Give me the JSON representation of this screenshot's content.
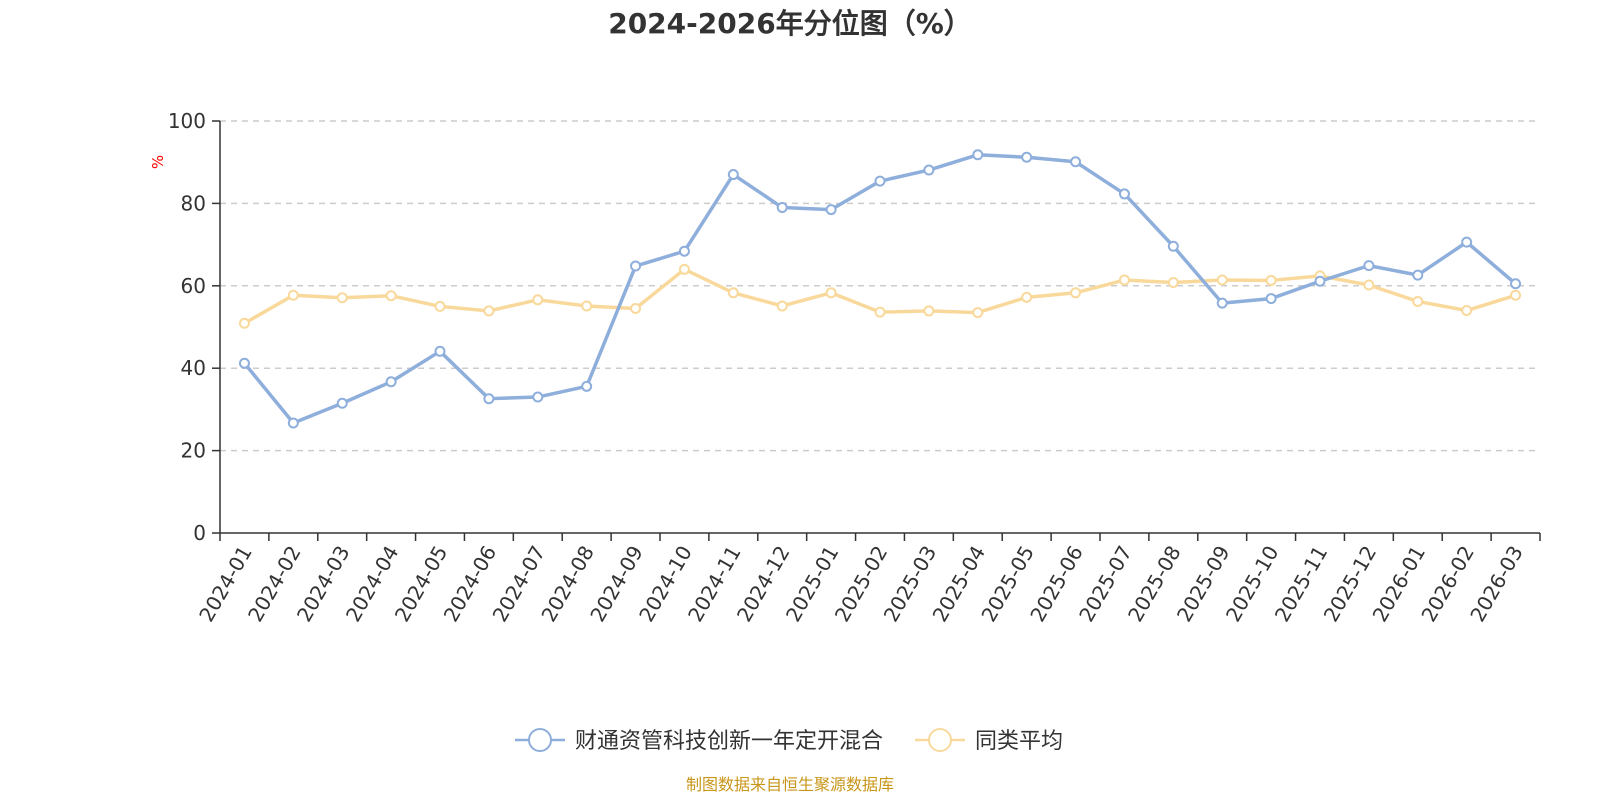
{
  "chart_data": {
    "type": "line",
    "title": "2024-2026年分位图（%）",
    "xlabel": "",
    "ylabel": "%",
    "ylim": [
      0,
      100
    ],
    "yticks": [
      0,
      20,
      40,
      60,
      80,
      100
    ],
    "grid": true,
    "legend_position": "bottom-center",
    "categories": [
      "2024-01",
      "2024-02",
      "2024-03",
      "2024-04",
      "2024-05",
      "2024-06",
      "2024-07",
      "2024-08",
      "2024-09",
      "2024-10",
      "2024-11",
      "2024-12",
      "2025-01",
      "2025-02",
      "2025-03",
      "2025-04",
      "2025-05",
      "2025-06",
      "2025-07",
      "2025-08",
      "2025-09",
      "2025-10",
      "2025-11",
      "2025-12",
      "2026-01",
      "2026-02",
      "2026-03"
    ],
    "series": [
      {
        "name": "财通资管科技创新一年定开混合",
        "color": "#8eaedb",
        "values": [
          41.2,
          26.7,
          31.5,
          36.7,
          44.1,
          32.6,
          33.0,
          35.6,
          64.8,
          68.4,
          87.0,
          79.0,
          78.5,
          85.4,
          88.1,
          91.8,
          91.2,
          90.1,
          82.3,
          69.6,
          55.8,
          56.9,
          61.1,
          64.9,
          62.6,
          70.6,
          60.5
        ]
      },
      {
        "name": "同类平均",
        "color": "#f9d99b",
        "values": [
          50.9,
          57.7,
          57.1,
          57.6,
          55.0,
          53.9,
          56.6,
          55.1,
          54.5,
          64.0,
          58.3,
          55.1,
          58.3,
          53.6,
          53.9,
          53.5,
          57.2,
          58.3,
          61.4,
          60.8,
          61.4,
          61.3,
          62.4,
          60.2,
          56.2,
          54.0,
          57.7
        ]
      }
    ],
    "source": "制图数据来自恒生聚源数据库",
    "source_color": "#c8961a",
    "axis_label_color": "#ff0000",
    "axis_color": "#333333",
    "grid_color": "#cccccc"
  }
}
